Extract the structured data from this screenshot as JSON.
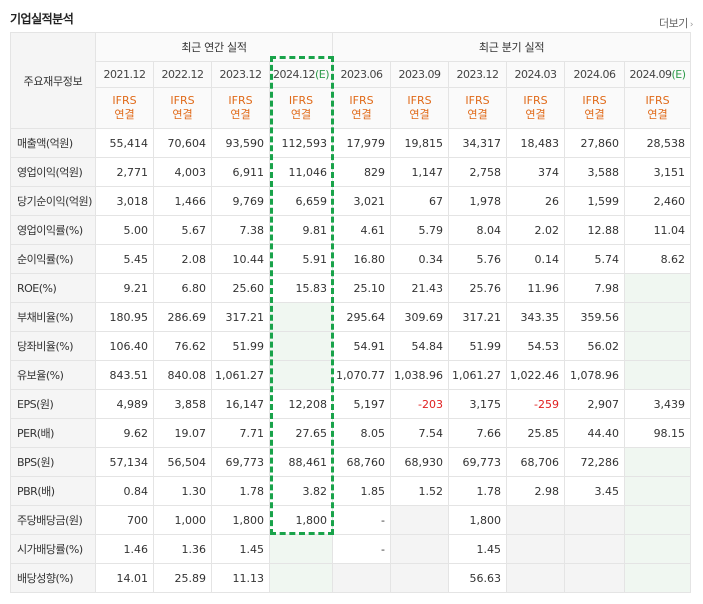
{
  "header": {
    "title": "기업실적분석",
    "more_label": "더보기"
  },
  "table": {
    "row_header_label": "주요재무정보",
    "group_annual": "최근 연간 실적",
    "group_quarter": "최근 분기 실적",
    "periods": [
      {
        "label": "2021.12",
        "estimate": false
      },
      {
        "label": "2022.12",
        "estimate": false
      },
      {
        "label": "2023.12",
        "estimate": false
      },
      {
        "label": "2024.12",
        "estimate": true,
        "mark": "(E)"
      },
      {
        "label": "2023.06",
        "estimate": false
      },
      {
        "label": "2023.09",
        "estimate": false
      },
      {
        "label": "2023.12",
        "estimate": false
      },
      {
        "label": "2024.03",
        "estimate": false
      },
      {
        "label": "2024.06",
        "estimate": false
      },
      {
        "label": "2024.09",
        "estimate": true,
        "mark": "(E)"
      }
    ],
    "ifrs_line1": "IFRS",
    "ifrs_line2": "연결",
    "rows": [
      {
        "label": "매출액(억원)",
        "values": [
          "55,414",
          "70,604",
          "93,590",
          "112,593",
          "17,979",
          "19,815",
          "34,317",
          "18,483",
          "27,860",
          "28,538"
        ]
      },
      {
        "label": "영업이익(억원)",
        "values": [
          "2,771",
          "4,003",
          "6,911",
          "11,046",
          "829",
          "1,147",
          "2,758",
          "374",
          "3,588",
          "3,151"
        ]
      },
      {
        "label": "당기순이익(억원)",
        "values": [
          "3,018",
          "1,466",
          "9,769",
          "6,659",
          "3,021",
          "67",
          "1,978",
          "26",
          "1,599",
          "2,460"
        ]
      },
      {
        "label": "영업이익률(%)",
        "values": [
          "5.00",
          "5.67",
          "7.38",
          "9.81",
          "4.61",
          "5.79",
          "8.04",
          "2.02",
          "12.88",
          "11.04"
        ]
      },
      {
        "label": "순이익률(%)",
        "values": [
          "5.45",
          "2.08",
          "10.44",
          "5.91",
          "16.80",
          "0.34",
          "5.76",
          "0.14",
          "5.74",
          "8.62"
        ]
      },
      {
        "label": "ROE(%)",
        "values": [
          "9.21",
          "6.80",
          "25.60",
          "15.83",
          "25.10",
          "21.43",
          "25.76",
          "11.96",
          "7.98",
          ""
        ]
      },
      {
        "label": "부채비율(%)",
        "values": [
          "180.95",
          "286.69",
          "317.21",
          "",
          "295.64",
          "309.69",
          "317.21",
          "343.35",
          "359.56",
          ""
        ]
      },
      {
        "label": "당좌비율(%)",
        "values": [
          "106.40",
          "76.62",
          "51.99",
          "",
          "54.91",
          "54.84",
          "51.99",
          "54.53",
          "56.02",
          ""
        ]
      },
      {
        "label": "유보율(%)",
        "values": [
          "843.51",
          "840.08",
          "1,061.27",
          "",
          "1,070.77",
          "1,038.96",
          "1,061.27",
          "1,022.46",
          "1,078.96",
          ""
        ]
      },
      {
        "label": "EPS(원)",
        "values": [
          "4,989",
          "3,858",
          "16,147",
          "12,208",
          "5,197",
          "-203",
          "3,175",
          "-259",
          "2,907",
          "3,439"
        ]
      },
      {
        "label": "PER(배)",
        "values": [
          "9.62",
          "19.07",
          "7.71",
          "27.65",
          "8.05",
          "7.54",
          "7.66",
          "25.85",
          "44.40",
          "98.15"
        ]
      },
      {
        "label": "BPS(원)",
        "values": [
          "57,134",
          "56,504",
          "69,773",
          "88,461",
          "68,760",
          "68,930",
          "69,773",
          "68,706",
          "72,286",
          ""
        ]
      },
      {
        "label": "PBR(배)",
        "values": [
          "0.84",
          "1.30",
          "1.78",
          "3.82",
          "1.85",
          "1.52",
          "1.78",
          "2.98",
          "3.45",
          ""
        ]
      },
      {
        "label": "주당배당금(원)",
        "values": [
          "700",
          "1,000",
          "1,800",
          "1,800",
          "-",
          "",
          "1,800",
          "",
          "",
          ""
        ]
      },
      {
        "label": "시가배당률(%)",
        "values": [
          "1.46",
          "1.36",
          "1.45",
          "",
          "-",
          "",
          "1.45",
          "",
          "",
          ""
        ]
      },
      {
        "label": "배당성향(%)",
        "values": [
          "14.01",
          "25.89",
          "11.13",
          "",
          "",
          "",
          "56.63",
          "",
          "",
          ""
        ]
      }
    ]
  },
  "colors": {
    "ifrs": "#e06a19",
    "estimate": "#2e9b4b",
    "negative": "#e02020",
    "highlight_border": "#19a34a"
  }
}
